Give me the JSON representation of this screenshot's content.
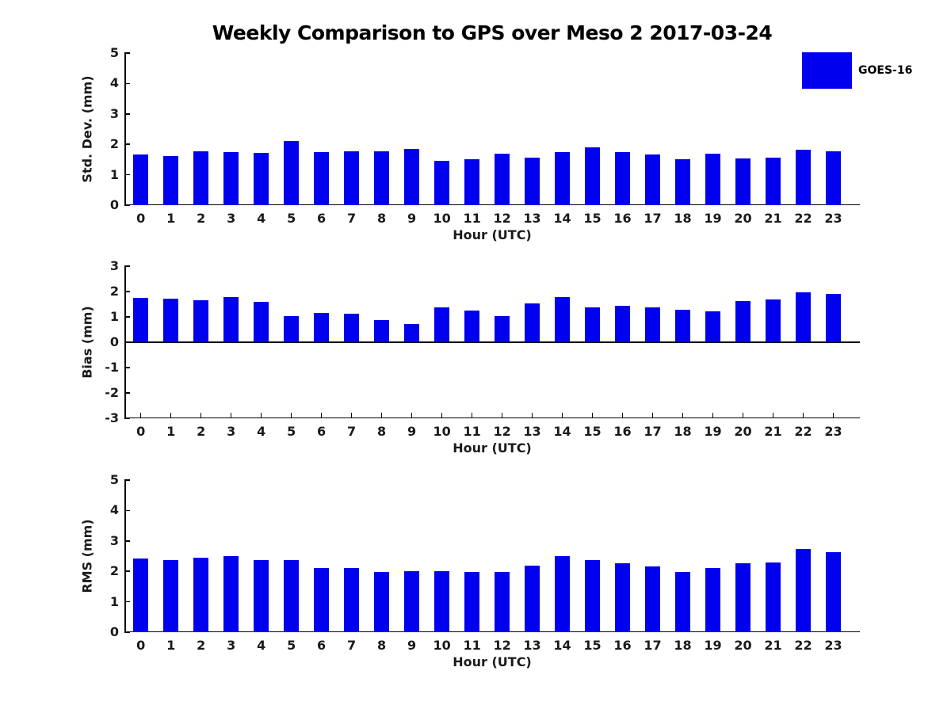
{
  "title": "Weekly Comparison to GPS over Meso 2 2017-03-24",
  "legend": {
    "label": "GOES-16",
    "color": "#0000ee",
    "position": "top-right"
  },
  "colors": {
    "bar": "#0000ee",
    "axis": "#000000",
    "text": "#1a1a1a"
  },
  "chart_data": [
    {
      "type": "bar",
      "name": "std-dev-panel",
      "title": "",
      "xlabel": "Hour (UTC)",
      "ylabel": "Std. Dev. (mm)",
      "legend_entry": "GOES-16",
      "grid": false,
      "ylim": [
        0,
        5
      ],
      "yticks": [
        0,
        1,
        2,
        3,
        4,
        5
      ],
      "categories": [
        "0",
        "1",
        "2",
        "3",
        "4",
        "5",
        "6",
        "7",
        "8",
        "9",
        "10",
        "11",
        "12",
        "13",
        "14",
        "15",
        "16",
        "17",
        "18",
        "19",
        "20",
        "21",
        "22",
        "23"
      ],
      "values": [
        1.67,
        1.61,
        1.77,
        1.74,
        1.72,
        2.1,
        1.74,
        1.77,
        1.77,
        1.85,
        1.46,
        1.52,
        1.69,
        1.56,
        1.74,
        1.9,
        1.74,
        1.67,
        1.51,
        1.69,
        1.53,
        1.55,
        1.82,
        1.77
      ]
    },
    {
      "type": "bar",
      "name": "bias-panel",
      "title": "",
      "xlabel": "Hour (UTC)",
      "ylabel": "Bias (mm)",
      "legend_entry": "GOES-16",
      "grid": false,
      "ylim": [
        -3,
        3
      ],
      "yticks": [
        -3,
        -2,
        -1,
        0,
        1,
        2,
        3
      ],
      "categories": [
        "0",
        "1",
        "2",
        "3",
        "4",
        "5",
        "6",
        "7",
        "8",
        "9",
        "10",
        "11",
        "12",
        "13",
        "14",
        "15",
        "16",
        "17",
        "18",
        "19",
        "20",
        "21",
        "22",
        "23"
      ],
      "values": [
        1.74,
        1.71,
        1.67,
        1.77,
        1.6,
        1.02,
        1.17,
        1.12,
        0.87,
        0.73,
        1.36,
        1.26,
        1.02,
        1.53,
        1.77,
        1.37,
        1.43,
        1.37,
        1.28,
        1.21,
        1.64,
        1.69,
        1.97,
        1.9
      ]
    },
    {
      "type": "bar",
      "name": "rms-panel",
      "title": "",
      "xlabel": "Hour (UTC)",
      "ylabel": "RMS (mm)",
      "legend_entry": "GOES-16",
      "grid": false,
      "ylim": [
        0,
        5
      ],
      "yticks": [
        0,
        1,
        2,
        3,
        4,
        5
      ],
      "categories": [
        "0",
        "1",
        "2",
        "3",
        "4",
        "5",
        "6",
        "7",
        "8",
        "9",
        "10",
        "11",
        "12",
        "13",
        "14",
        "15",
        "16",
        "17",
        "18",
        "19",
        "20",
        "21",
        "22",
        "23"
      ],
      "values": [
        2.41,
        2.38,
        2.46,
        2.49,
        2.38,
        2.37,
        2.12,
        2.1,
        1.98,
        2.01,
        2.01,
        1.97,
        1.98,
        2.2,
        2.5,
        2.37,
        2.27,
        2.17,
        1.99,
        2.12,
        2.27,
        2.3,
        2.73,
        2.62
      ]
    }
  ]
}
